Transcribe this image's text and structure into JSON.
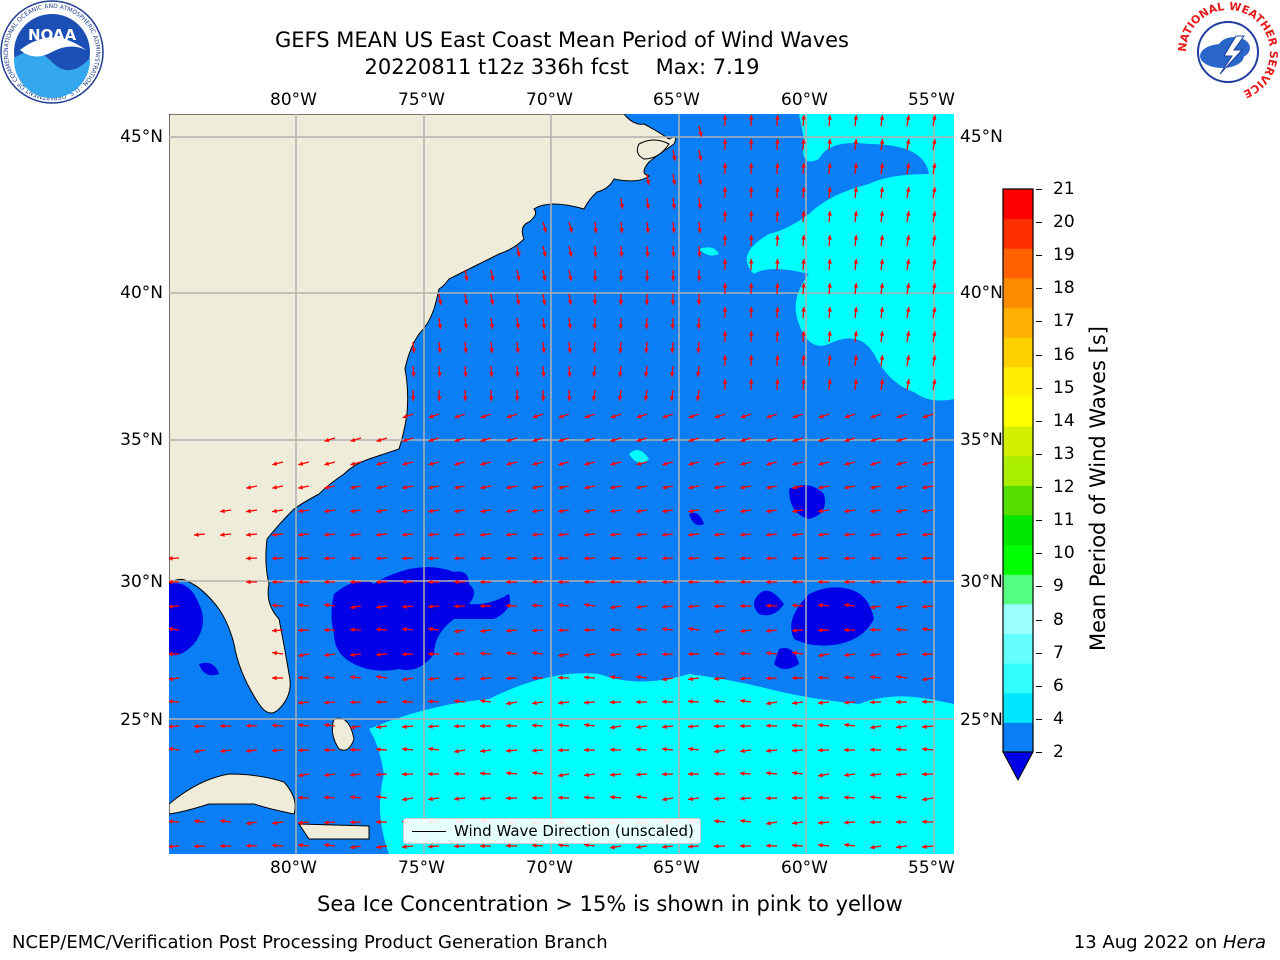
{
  "title": {
    "line1": "GEFS MEAN US East Coast Mean Period of Wind Waves",
    "line2": "20220811 t12z 336h fcst    Max: 7.19"
  },
  "map": {
    "lon_labels": [
      "80°W",
      "75°W",
      "70°W",
      "65°W",
      "60°W",
      "55°W"
    ],
    "lat_labels": [
      "45°N",
      "40°N",
      "35°N",
      "30°N",
      "25°N"
    ],
    "legend_label": "Wind Wave Direction (unscaled)",
    "colors": {
      "land": "#efedda",
      "ocean_2_4": "#0a7ef5",
      "ocean_below_2": "#0000e6",
      "ocean_4_6": "#00ffff",
      "arrow": "#ff0000",
      "grid": "#b0b0b0"
    }
  },
  "colorbar": {
    "label": "Mean Period of Wind Waves [s]",
    "ticks": [
      "21",
      "20",
      "19",
      "18",
      "17",
      "16",
      "15",
      "14",
      "13",
      "12",
      "11",
      "10",
      "9",
      "8",
      "7",
      "6",
      "4",
      "2"
    ],
    "colors": [
      "#0a7ef5",
      "#00e5ff",
      "#33ffff",
      "#66ffff",
      "#99ffff",
      "#55ff80",
      "#00ff00",
      "#00e600",
      "#55dd00",
      "#aaee00",
      "#d4f000",
      "#ffff00",
      "#ffee00",
      "#ffd000",
      "#ffb000",
      "#ff8c00",
      "#ff6000",
      "#ff3000",
      "#ff0000"
    ],
    "under_color": "#0000e6"
  },
  "subtitle": "Sea Ice Concentration > 15% is shown in pink to yellow",
  "footer": {
    "left": "NCEP/EMC/Verification Post Processing Product Generation Branch",
    "right_prefix": "13 Aug 2022 on ",
    "right_host": "Hera"
  },
  "logos": {
    "noaa_text": "NOAA",
    "noaa_ring": "NATIONAL OCEANIC AND ATMOSPHERIC ADMINISTRATION · U.S. DEPARTMENT OF COMMERCE",
    "nws_ring": "NATIONAL WEATHER SERVICE"
  }
}
